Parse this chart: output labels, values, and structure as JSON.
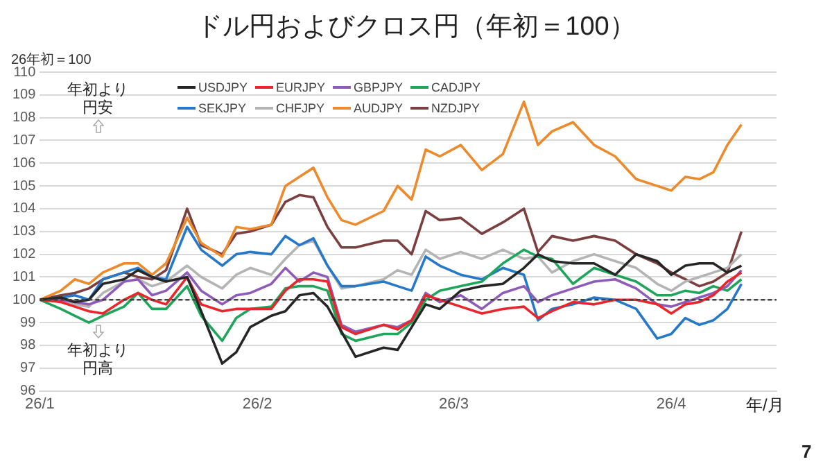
{
  "chart_data": {
    "type": "line",
    "title": "ドル円およびクロス円（年初＝100）",
    "ylabel": "26年初＝100",
    "xlabel": "年/月",
    "annotations": [
      "年初より円安",
      "年初より円高",
      "7"
    ],
    "x": [
      "--01-01",
      "--01-04",
      "--01-06",
      "--01-08",
      "--01-10",
      "--01-13",
      "--01-15",
      "--01-17",
      "--01-19",
      "--01-22",
      "--01-24",
      "--01-27",
      "--01-29",
      "--01-31",
      "--02-03",
      "--02-05",
      "--02-07",
      "--02-09",
      "--02-11",
      "--02-13",
      "--02-15",
      "--02-19",
      "--02-21",
      "--02-23",
      "--02-25",
      "--02-27",
      "--03-02",
      "--03-05",
      "--03-08",
      "--03-11",
      "--03-13",
      "--03-15",
      "--03-18",
      "--03-21",
      "--03-24",
      "--03-27",
      "--03-30",
      "--04-01",
      "--04-03",
      "--04-05",
      "--04-07",
      "--04-09",
      "--04-11"
    ],
    "series": [
      {
        "name": "USDJPY",
        "color": "#262626",
        "values": [
          100,
          100.1,
          99.9,
          100.0,
          100.7,
          100.9,
          101.3,
          101.0,
          100.8,
          101.0,
          99.5,
          97.2,
          97.7,
          98.8,
          99.3,
          99.5,
          100.2,
          100.3,
          99.7,
          98.6,
          97.5,
          97.9,
          97.8,
          98.8,
          99.8,
          99.6,
          100.4,
          100.6,
          100.7,
          101.4,
          102.0,
          101.7,
          101.6,
          101.6,
          101.1,
          102.0,
          101.7,
          101.1,
          101.5,
          101.6,
          101.6,
          101.2,
          101.5
        ]
      },
      {
        "name": "EURJPY",
        "color": "#e8262b",
        "values": [
          100,
          99.9,
          99.7,
          99.5,
          99.4,
          100.0,
          100.3,
          100.0,
          99.8,
          101.0,
          99.8,
          99.5,
          99.6,
          99.6,
          99.6,
          100.4,
          100.9,
          100.9,
          100.8,
          98.8,
          98.5,
          98.9,
          98.7,
          99.1,
          100.2,
          100.0,
          99.7,
          99.4,
          99.6,
          99.7,
          99.2,
          99.5,
          99.9,
          99.8,
          100.0,
          100.0,
          99.8,
          99.4,
          99.8,
          99.9,
          100.2,
          100.8,
          101.2
        ]
      },
      {
        "name": "GBPJPY",
        "color": "#8e5cb8",
        "values": [
          100,
          100.0,
          99.9,
          99.8,
          100.0,
          100.8,
          100.9,
          100.2,
          100.4,
          101.2,
          100.4,
          99.8,
          100.2,
          100.3,
          100.7,
          101.4,
          100.8,
          101.2,
          101.0,
          98.9,
          98.6,
          98.9,
          98.8,
          99.1,
          100.3,
          99.9,
          100.2,
          99.6,
          100.3,
          100.6,
          99.9,
          100.2,
          100.5,
          100.8,
          100.9,
          100.5,
          99.8,
          99.7,
          99.9,
          100.1,
          100.3,
          100.6,
          101.3
        ]
      },
      {
        "name": "CADJPY",
        "color": "#1fa55a",
        "values": [
          100,
          99.6,
          99.3,
          99.0,
          99.3,
          99.7,
          100.3,
          99.6,
          99.6,
          100.6,
          99.3,
          98.2,
          99.2,
          99.6,
          99.7,
          100.5,
          100.6,
          100.6,
          100.4,
          98.5,
          98.2,
          98.5,
          98.5,
          99.0,
          100.0,
          100.4,
          100.6,
          100.8,
          101.6,
          102.2,
          101.9,
          101.8,
          100.7,
          101.4,
          101.1,
          100.8,
          100.2,
          100.2,
          100.4,
          100.3,
          100.6,
          100.4,
          100.9
        ]
      },
      {
        "name": "SEKJPY",
        "color": "#2678c8",
        "values": [
          100,
          100.1,
          100.2,
          100.0,
          100.9,
          101.2,
          101.4,
          101.0,
          100.9,
          103.2,
          102.2,
          101.5,
          102.0,
          102.1,
          102.0,
          102.8,
          102.4,
          102.7,
          101.5,
          100.6,
          100.6,
          100.8,
          100.6,
          100.4,
          101.9,
          101.5,
          101.1,
          100.9,
          101.4,
          101.1,
          99.1,
          99.6,
          99.8,
          100.1,
          100.0,
          99.6,
          98.3,
          98.5,
          99.2,
          98.9,
          99.1,
          99.6,
          100.7
        ]
      },
      {
        "name": "CHFJPY",
        "color": "#b4b4b4",
        "values": [
          100,
          100.0,
          99.8,
          99.7,
          100.3,
          100.8,
          100.9,
          100.6,
          100.8,
          101.5,
          101.0,
          100.5,
          101.1,
          101.4,
          101.1,
          101.8,
          102.4,
          102.6,
          101.5,
          100.5,
          100.6,
          100.9,
          101.3,
          101.1,
          102.2,
          101.8,
          102.1,
          101.8,
          102.2,
          101.8,
          101.9,
          101.2,
          101.7,
          102.0,
          101.7,
          101.4,
          100.7,
          100.4,
          100.8,
          101.0,
          101.2,
          101.4,
          102.0
        ]
      },
      {
        "name": "AUDJPY",
        "color": "#ed8a2c",
        "values": [
          100,
          100.4,
          100.9,
          100.7,
          101.2,
          101.6,
          101.6,
          101.1,
          101.6,
          103.6,
          102.5,
          101.9,
          103.2,
          103.1,
          103.3,
          105.0,
          105.4,
          105.8,
          104.5,
          103.5,
          103.3,
          103.9,
          105.0,
          104.4,
          106.6,
          106.3,
          106.8,
          105.7,
          106.4,
          108.7,
          106.8,
          107.4,
          107.8,
          106.8,
          106.3,
          105.3,
          105.0,
          104.8,
          105.4,
          105.3,
          105.6,
          106.8,
          107.7
        ]
      },
      {
        "name": "NZDJPY",
        "color": "#7b3f3f",
        "values": [
          100,
          100.2,
          100.3,
          100.5,
          100.9,
          101.2,
          101.0,
          100.9,
          101.3,
          104.0,
          102.4,
          102.0,
          102.9,
          103.0,
          103.3,
          104.3,
          104.6,
          104.5,
          103.2,
          102.3,
          102.3,
          102.6,
          102.6,
          102.0,
          103.9,
          103.5,
          103.6,
          102.9,
          103.4,
          104.0,
          102.1,
          102.8,
          102.6,
          102.8,
          102.6,
          102.0,
          101.6,
          101.2,
          100.9,
          100.6,
          100.8,
          101.2,
          103.0
        ]
      }
    ],
    "xlim": [
      "--01-01",
      "--04-16"
    ],
    "xticks": [
      {
        "value": "--01-01",
        "label": "26/1"
      },
      {
        "value": "--02-01",
        "label": "26/2"
      },
      {
        "value": "--03-01",
        "label": "26/3"
      },
      {
        "value": "--04-01",
        "label": "26/4"
      }
    ],
    "ylim": [
      96,
      110
    ],
    "yticks": [
      96,
      97,
      98,
      99,
      100,
      101,
      102,
      103,
      104,
      105,
      106,
      107,
      108,
      109,
      110
    ],
    "ref_lines": [
      {
        "axis": "y",
        "value": 100,
        "color": "#404040",
        "line_style": "dashed"
      }
    ],
    "grid": "y",
    "legend": "top"
  }
}
